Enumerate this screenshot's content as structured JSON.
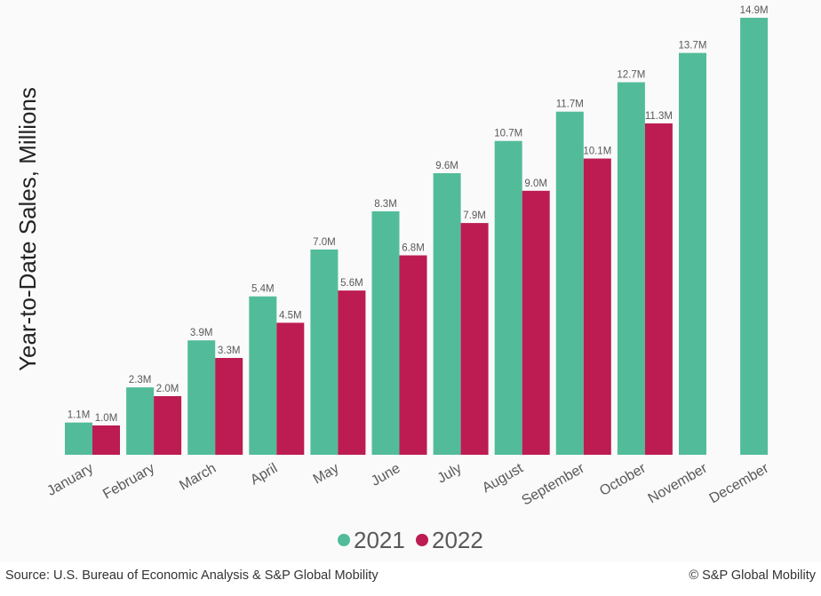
{
  "chart_data": {
    "type": "bar",
    "title": "",
    "xlabel": "",
    "ylabel": "Year-to-Date Sales, Millions",
    "ylim": [
      0,
      15
    ],
    "grid": false,
    "legend_position": "bottom-center",
    "categories": [
      "January",
      "February",
      "March",
      "April",
      "May",
      "June",
      "July",
      "August",
      "September",
      "October",
      "November",
      "December"
    ],
    "series": [
      {
        "name": "2021",
        "color": "#52bc9a",
        "values": [
          1.1,
          2.3,
          3.9,
          5.4,
          7.0,
          8.3,
          9.6,
          10.7,
          11.7,
          12.7,
          13.7,
          14.9
        ],
        "labels": [
          "1.1M",
          "2.3M",
          "3.9M",
          "5.4M",
          "7.0M",
          "8.3M",
          "9.6M",
          "10.7M",
          "11.7M",
          "12.7M",
          "13.7M",
          "14.9M"
        ]
      },
      {
        "name": "2022",
        "color": "#bc1c51",
        "values": [
          1.0,
          2.0,
          3.3,
          4.5,
          5.6,
          6.8,
          7.9,
          9.0,
          10.1,
          11.3,
          null,
          null
        ],
        "labels": [
          "1.0M",
          "2.0M",
          "3.3M",
          "4.5M",
          "5.6M",
          "6.8M",
          "7.9M",
          "9.0M",
          "10.1M",
          "11.3M",
          null,
          null
        ]
      }
    ]
  },
  "footer": {
    "source": "Source: U.S. Bureau of Economic Analysis & S&P Global Mobility",
    "copyright": "© S&P Global Mobility"
  }
}
